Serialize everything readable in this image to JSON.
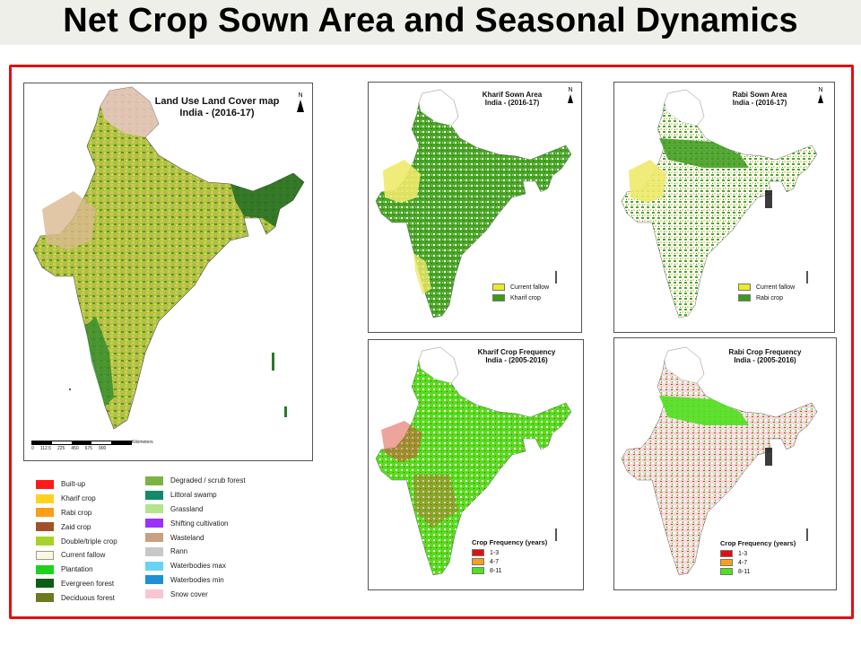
{
  "slide": {
    "title": "Net Crop Sown Area and Seasonal Dynamics"
  },
  "lulc_map": {
    "title_line1": "Land Use Land Cover map",
    "title_line2": "India - (2016-17)",
    "north": "N",
    "scale_ticks": [
      "0",
      "112.5",
      "225",
      "450",
      "675",
      "900"
    ],
    "scale_unit": "Kilometers",
    "legend": [
      {
        "label": "Built-up",
        "color": "#ff1a1a"
      },
      {
        "label": "Kharif crop",
        "color": "#ffd21f"
      },
      {
        "label": "Rabi crop",
        "color": "#ff9c1a"
      },
      {
        "label": "Zaid crop",
        "color": "#a0522d"
      },
      {
        "label": "Double/triple crop",
        "color": "#a8d22a"
      },
      {
        "label": "Current fallow",
        "color": "#fbf8e0"
      },
      {
        "label": "Plantation",
        "color": "#1ed21e"
      },
      {
        "label": "Evergreen forest",
        "color": "#0b5e16"
      },
      {
        "label": "Deciduous forest",
        "color": "#6d7a1f"
      },
      {
        "label": "Degraded / scrub forest",
        "color": "#7cb342"
      },
      {
        "label": "Littoral swamp",
        "color": "#13896a"
      },
      {
        "label": "Grassland",
        "color": "#b5e48c"
      },
      {
        "label": "Shifting cultivation",
        "color": "#9b30ff"
      },
      {
        "label": "Wasteland",
        "color": "#c9a081"
      },
      {
        "label": "Rann",
        "color": "#c8c8c8"
      },
      {
        "label": "Waterbodies max",
        "color": "#66d4f2"
      },
      {
        "label": "Waterbodies min",
        "color": "#1e90d6"
      },
      {
        "label": "Snow cover",
        "color": "#f8c6d0"
      }
    ]
  },
  "kharif_sown": {
    "title_line1": "Kharif Sown Area",
    "title_line2": "India - (2016-17)",
    "north": "N",
    "legend": [
      {
        "label": "Current fallow",
        "color": "#eeea2a"
      },
      {
        "label": "Kharif crop",
        "color": "#3c9a1a"
      }
    ]
  },
  "rabi_sown": {
    "title_line1": "Rabi Sown Area",
    "title_line2": "India - (2016-17)",
    "north": "N",
    "legend": [
      {
        "label": "Current fallow",
        "color": "#eeea2a"
      },
      {
        "label": "Rabi crop",
        "color": "#3c9a1a"
      }
    ]
  },
  "kharif_freq": {
    "title_line1": "Kharif Crop Frequency",
    "title_line2": "India - (2005-2016)",
    "legend_title": "Crop Frequency (years)",
    "legend": [
      {
        "label": "1-3",
        "color": "#e01010"
      },
      {
        "label": "4-7",
        "color": "#f4a21e"
      },
      {
        "label": "8-11",
        "color": "#4fe01e"
      }
    ]
  },
  "rabi_freq": {
    "title_line1": "Rabi Crop Frequency",
    "title_line2": "India - (2005-2016)",
    "legend_title": "Crop Frequency (years)",
    "legend": [
      {
        "label": "1-3",
        "color": "#e01010"
      },
      {
        "label": "4-7",
        "color": "#f4a21e"
      },
      {
        "label": "8-11",
        "color": "#4fe01e"
      }
    ]
  }
}
